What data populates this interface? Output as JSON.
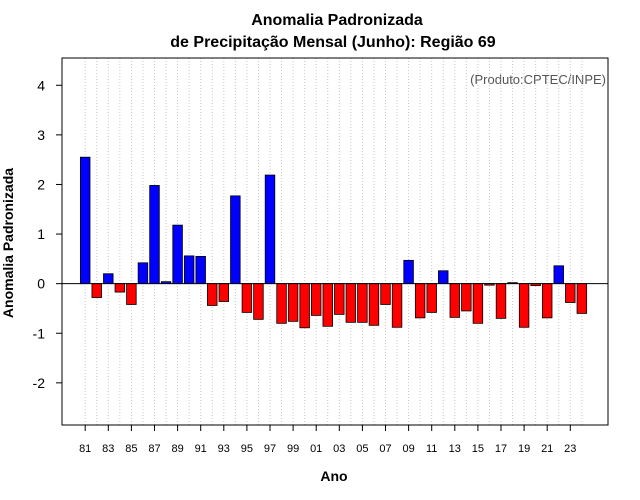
{
  "chart_data": {
    "type": "bar",
    "title": "Anomalia Padronizada",
    "subtitle": "de Precipitação Mensal (Junho): Região 69",
    "xlabel": "Ano",
    "ylabel": "Anomalia Padronizada",
    "credit": "(Produto:CPTEC/INPE)",
    "ylim": [
      -2.85,
      4.55
    ],
    "yticks": [
      "4",
      "3",
      "2",
      "1",
      "0",
      "-1",
      "-2"
    ],
    "ytick_values": [
      4,
      3,
      2,
      1,
      0,
      -1,
      -2
    ],
    "xtick_labels": [
      "81",
      "83",
      "85",
      "87",
      "89",
      "91",
      "93",
      "95",
      "97",
      "99",
      "01",
      "03",
      "05",
      "07",
      "09",
      "11",
      "13",
      "15",
      "17",
      "19",
      "21",
      "23"
    ],
    "grid": "vertical dotted",
    "colors": {
      "positive": "#0000ff",
      "negative": "#ff0000"
    },
    "categories": [
      "1981",
      "1982",
      "1983",
      "1984",
      "1985",
      "1986",
      "1987",
      "1988",
      "1989",
      "1990",
      "1991",
      "1992",
      "1993",
      "1994",
      "1995",
      "1996",
      "1997",
      "1998",
      "1999",
      "2000",
      "2001",
      "2002",
      "2003",
      "2004",
      "2005",
      "2006",
      "2007",
      "2008",
      "2009",
      "2010",
      "2011",
      "2012",
      "2013",
      "2014",
      "2015",
      "2016",
      "2017",
      "2018",
      "2019",
      "2020",
      "2021",
      "2022",
      "2023",
      "2024"
    ],
    "values": [
      2.55,
      -0.28,
      0.2,
      -0.17,
      -0.42,
      0.42,
      1.98,
      0.04,
      1.18,
      0.56,
      0.55,
      -0.44,
      -0.36,
      1.77,
      -0.58,
      -0.72,
      2.19,
      -0.8,
      -0.76,
      -0.89,
      -0.64,
      -0.86,
      -0.62,
      -0.78,
      -0.78,
      -0.84,
      -0.42,
      -0.88,
      0.47,
      -0.69,
      -0.58,
      0.26,
      -0.68,
      -0.55,
      -0.8,
      -0.03,
      -0.7,
      0.02,
      -0.88,
      -0.04,
      -0.69,
      0.36,
      -0.38,
      -0.6
    ]
  }
}
